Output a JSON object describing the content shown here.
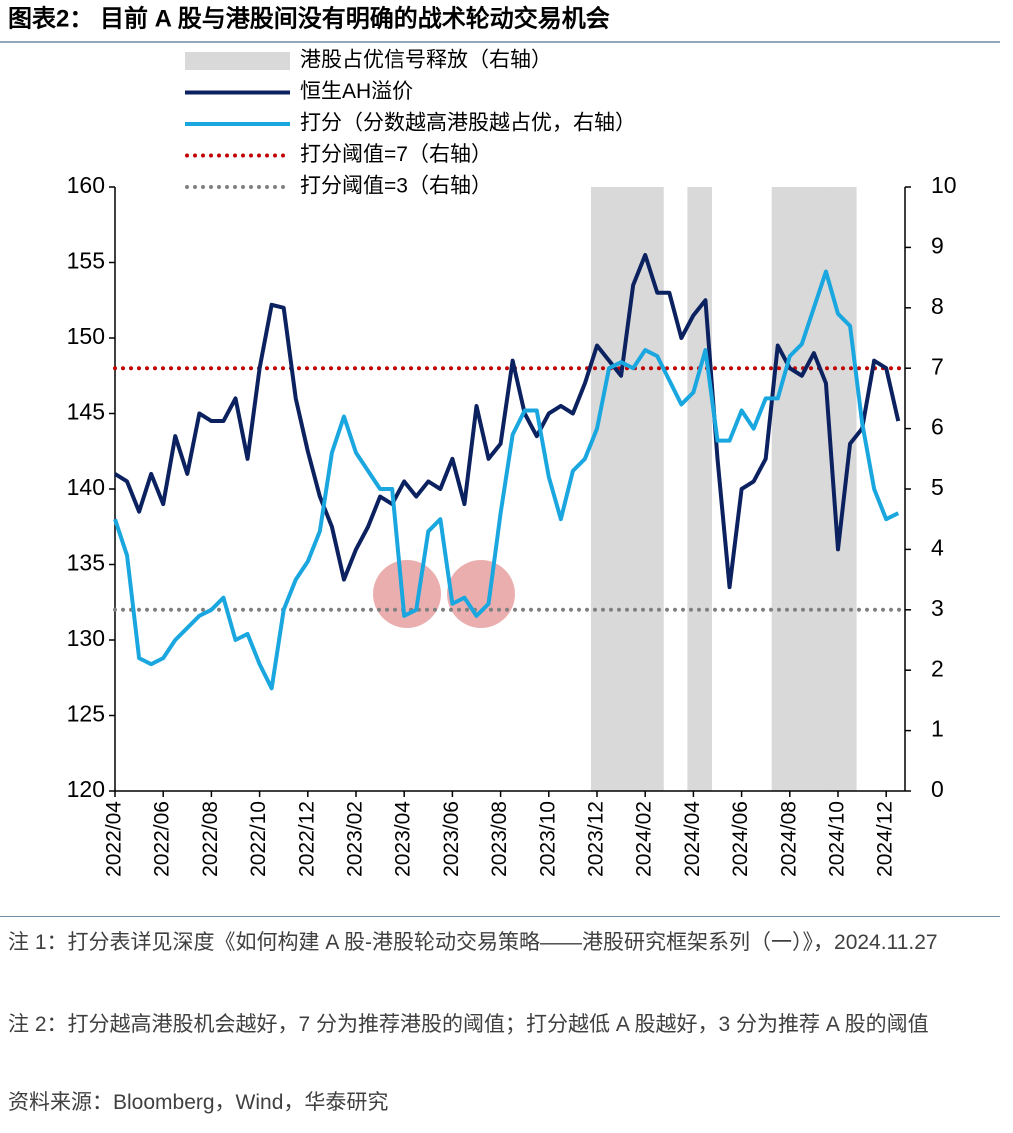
{
  "chart_data": {
    "type": "line",
    "title": "图表2：  目前 A 股与港股间没有明确的战术轮动交易机会",
    "categories": [
      "2022/04",
      null,
      null,
      null,
      "2022/06",
      null,
      null,
      null,
      "2022/08",
      null,
      null,
      null,
      "2022/10",
      null,
      null,
      null,
      "2022/12",
      null,
      null,
      null,
      "2023/02",
      null,
      null,
      null,
      "2023/04",
      null,
      null,
      null,
      "2023/06",
      null,
      null,
      null,
      "2023/08",
      null,
      null,
      null,
      "2023/10",
      null,
      null,
      null,
      "2023/12",
      null,
      null,
      null,
      "2024/02",
      null,
      null,
      null,
      "2024/04",
      null,
      null,
      null,
      "2024/06",
      null,
      null,
      null,
      "2024/08",
      null,
      null,
      null,
      "2024/10",
      null,
      null,
      null,
      "2024/12",
      null
    ],
    "series": [
      {
        "name": "港股占优信号释放（右轴）",
        "type": "bar",
        "axis": "y2",
        "color": "#d9d9d9",
        "values": [
          null,
          null,
          null,
          null,
          null,
          null,
          null,
          null,
          null,
          null,
          null,
          null,
          null,
          null,
          null,
          null,
          null,
          null,
          null,
          null,
          null,
          null,
          null,
          null,
          null,
          null,
          null,
          null,
          null,
          null,
          null,
          null,
          null,
          null,
          null,
          null,
          null,
          null,
          null,
          null,
          10,
          10,
          10,
          10,
          10,
          10,
          null,
          null,
          10,
          10,
          null,
          null,
          null,
          null,
          null,
          10,
          10,
          10,
          10,
          10,
          10,
          10,
          null,
          null,
          null,
          null
        ]
      },
      {
        "name": "恒生AH溢价",
        "type": "line",
        "color": "#0c2260",
        "values": [
          141,
          140.5,
          138.5,
          141,
          139,
          143.5,
          141,
          145,
          144.5,
          144.5,
          146,
          142,
          148,
          152.2,
          152,
          146,
          142.5,
          139.5,
          137.5,
          134,
          136,
          137.5,
          139.5,
          139,
          140.5,
          139.5,
          140.5,
          140,
          142,
          139,
          145.5,
          142,
          143,
          148.5,
          145,
          143.5,
          145,
          145.5,
          145,
          147,
          149.5,
          148.5,
          147.5,
          153.5,
          155.5,
          153,
          153,
          150,
          151.5,
          152.5,
          142,
          133.5,
          140,
          140.5,
          142,
          149.5,
          148,
          147.5,
          149,
          147,
          136,
          143,
          144,
          148.5,
          148,
          144.5
        ]
      },
      {
        "name": "打分（分数越高港股越占优，右轴）",
        "type": "line",
        "axis": "y2",
        "color": "#1aa7e0",
        "values": [
          4.5,
          3.9,
          2.2,
          2.1,
          2.2,
          2.5,
          2.7,
          2.9,
          3.0,
          3.2,
          2.5,
          2.6,
          2.1,
          1.7,
          3.0,
          3.5,
          3.8,
          4.3,
          5.6,
          6.2,
          5.6,
          5.3,
          5.0,
          5.0,
          2.9,
          3.0,
          4.3,
          4.5,
          3.1,
          3.2,
          2.9,
          3.1,
          4.6,
          5.9,
          6.3,
          6.3,
          5.2,
          4.5,
          5.3,
          5.5,
          6.0,
          7.0,
          7.1,
          7.0,
          7.3,
          7.2,
          6.8,
          6.4,
          6.6,
          7.3,
          5.8,
          5.8,
          6.3,
          6.0,
          6.5,
          6.5,
          7.2,
          7.4,
          8.0,
          8.6,
          7.9,
          7.7,
          6.1,
          5.0,
          4.5,
          4.6
        ]
      }
    ],
    "reference_lines": [
      {
        "name": "打分阈值=7（右轴）",
        "value": 7,
        "axis": "y2",
        "color": "#c00000"
      },
      {
        "name": "打分阈值=3（右轴）",
        "value": 3,
        "axis": "y2",
        "color": "#808080"
      }
    ],
    "ylim": [
      120,
      160
    ],
    "yticks": [
      120,
      125,
      130,
      135,
      140,
      145,
      150,
      155,
      160
    ],
    "y2lim": [
      0,
      10
    ],
    "y2ticks": [
      0,
      1,
      2,
      3,
      4,
      5,
      6,
      7,
      8,
      9,
      10
    ],
    "notes": [
      "注 1：打分表详见深度《如何构建 A 股-港股轮动交易策略——港股研究框架系列（一）》，2024.11.27",
      "注 2：打分越高港股机会越好，7 分为推荐港股的阈值；打分越低 A 股越好，3 分为推荐 A 股的阈值",
      "资料来源：Bloomberg，Wind，华泰研究"
    ]
  }
}
